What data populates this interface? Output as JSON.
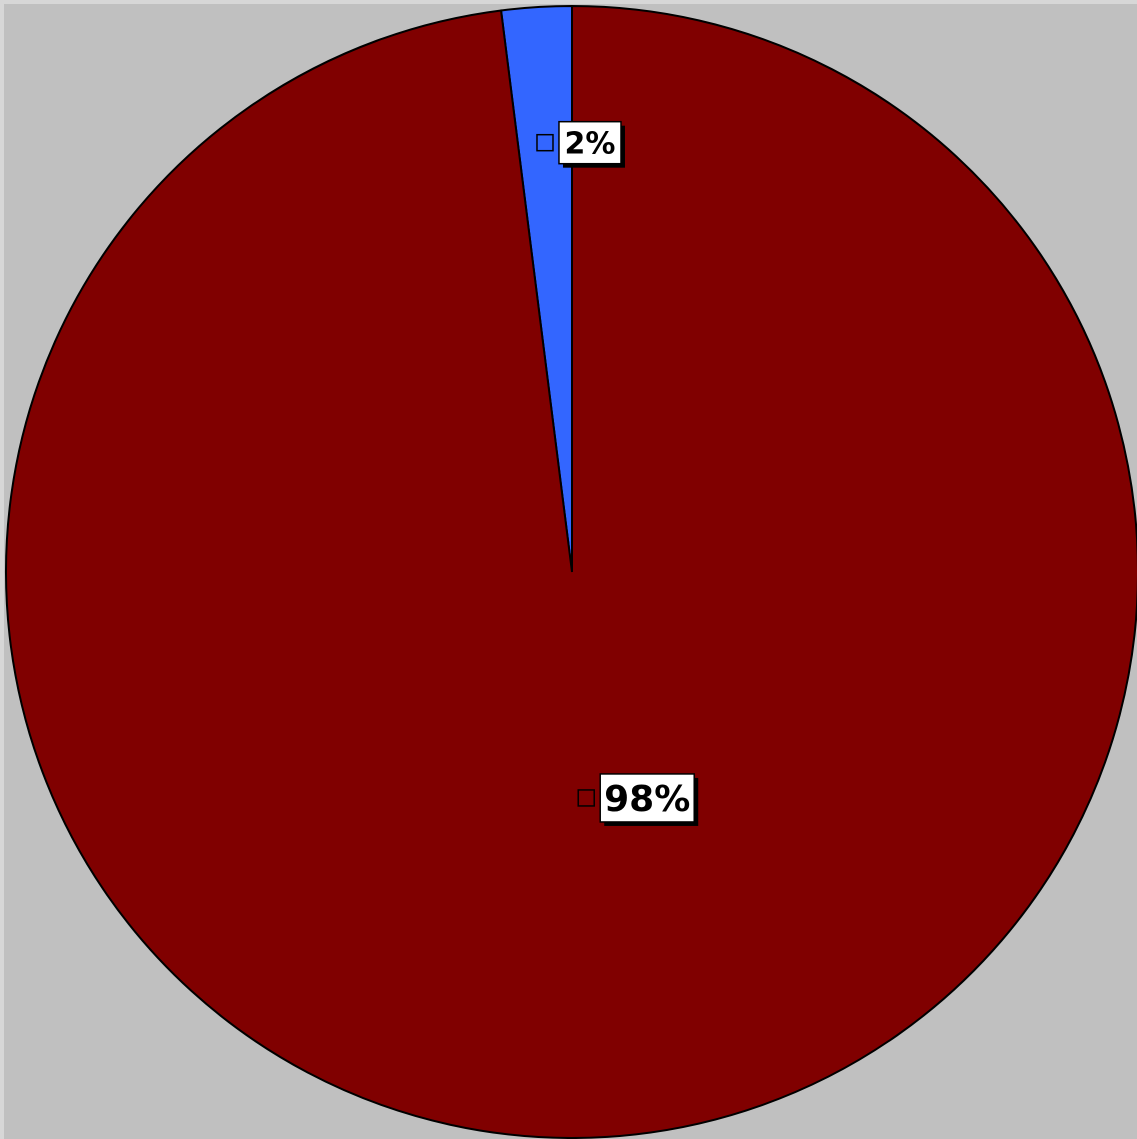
{
  "chart_data": {
    "type": "pie",
    "slices": [
      {
        "value": 2,
        "label": "2%",
        "color": "#3366ff"
      },
      {
        "value": 98,
        "label": "98%",
        "color": "#800000"
      }
    ],
    "start_angle_deg": 0,
    "direction": "counterclockwise",
    "background_color": "#c0c0c0",
    "outline_color": "#000000"
  }
}
